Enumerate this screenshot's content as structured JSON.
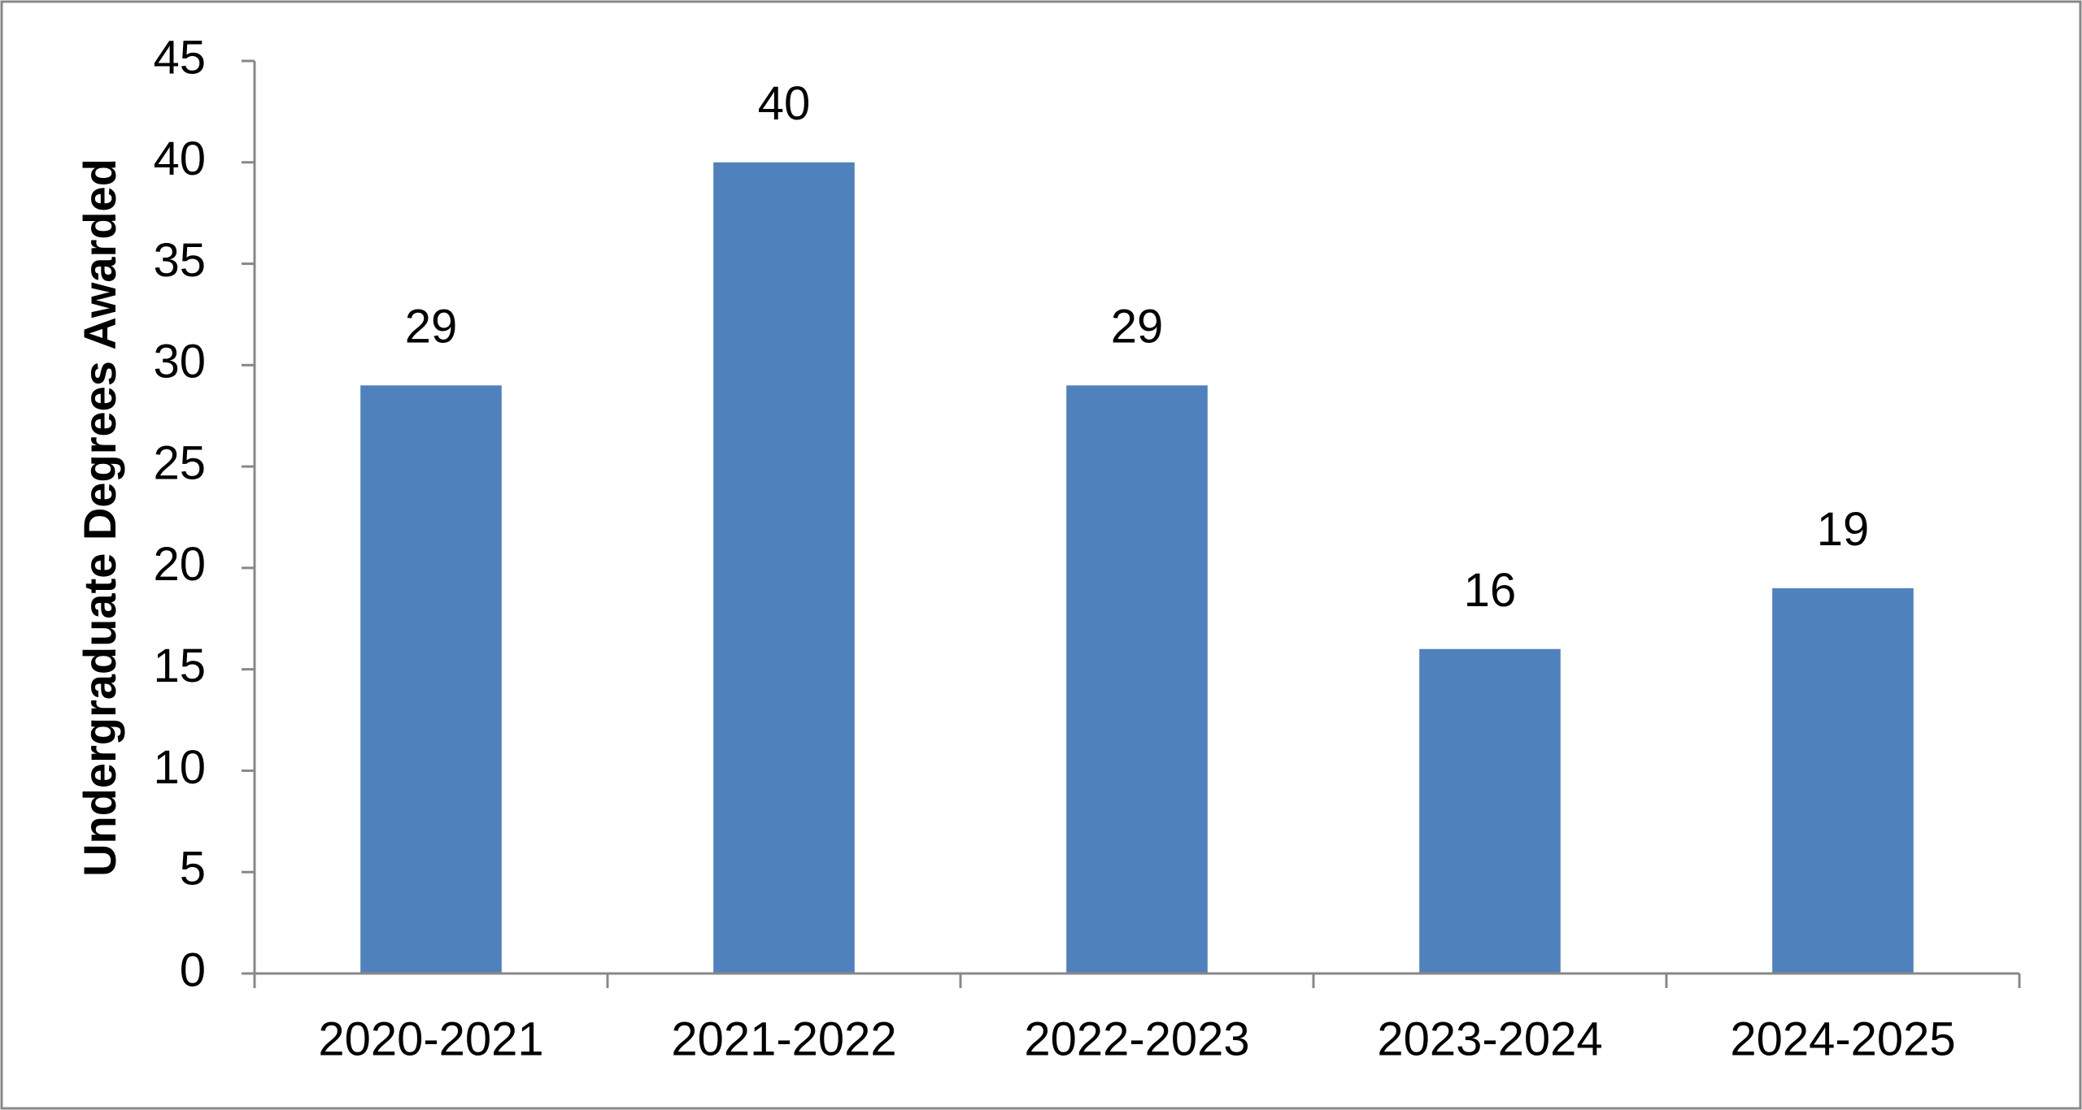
{
  "chart_data": {
    "type": "bar",
    "y_label": "Undergraduate Degrees Awarded",
    "categories": [
      "2020-2021",
      "2021-2022",
      "2022-2023",
      "2023-2024",
      "2024-2025"
    ],
    "values": [
      29,
      40,
      29,
      16,
      19
    ],
    "color": "#4f81bd",
    "ylim": [
      0,
      45
    ],
    "yticks": [
      0,
      5,
      10,
      15,
      20,
      25,
      30,
      35,
      40,
      45
    ],
    "grid": false
  }
}
